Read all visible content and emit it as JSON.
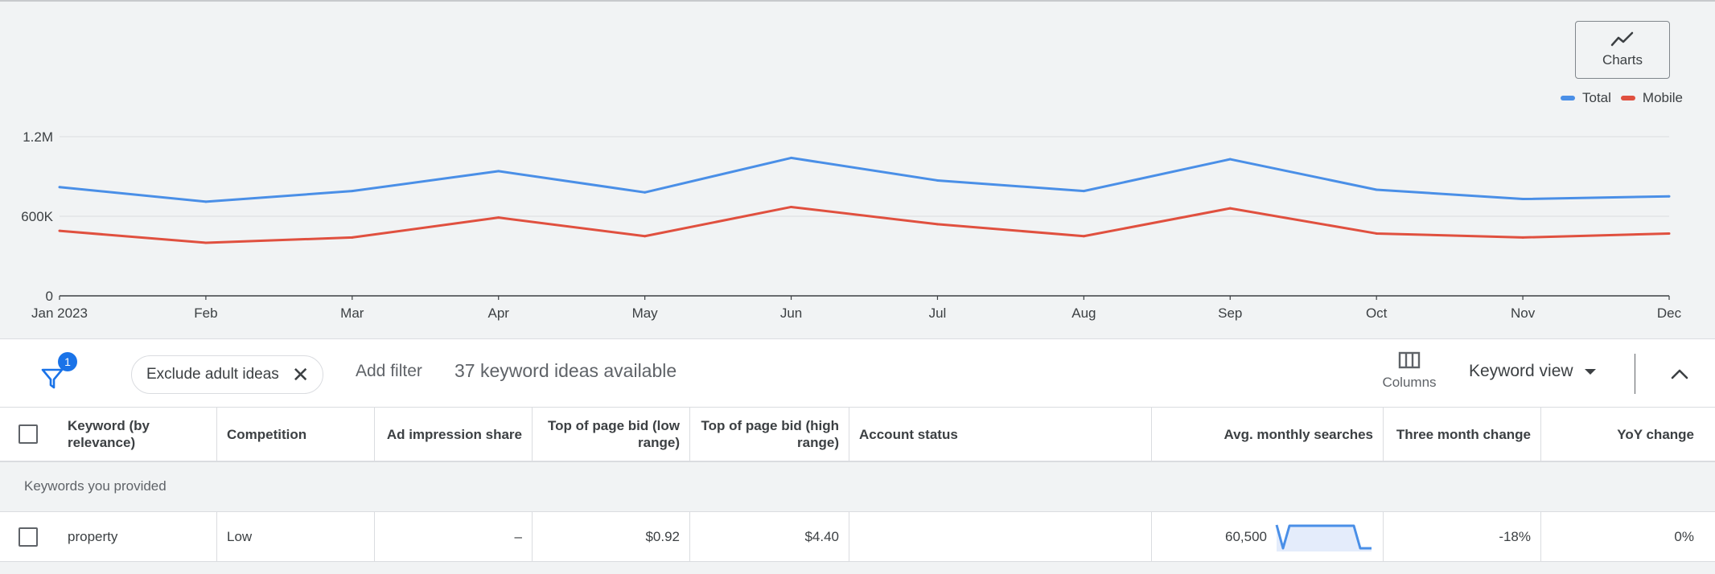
{
  "charts_button": {
    "label": "Charts",
    "icon": "trending-icon"
  },
  "legend": [
    {
      "name": "Total",
      "color": "#4a8fe7"
    },
    {
      "name": "Mobile",
      "color": "#e0503f"
    }
  ],
  "chart_data": {
    "type": "line",
    "categories": [
      "Jan 2023",
      "Feb",
      "Mar",
      "Apr",
      "May",
      "Jun",
      "Jul",
      "Aug",
      "Sep",
      "Oct",
      "Nov",
      "Dec"
    ],
    "series": [
      {
        "name": "Total",
        "color": "#4a8fe7",
        "values": [
          820000,
          710000,
          790000,
          940000,
          780000,
          1040000,
          870000,
          790000,
          1030000,
          800000,
          730000,
          750000
        ]
      },
      {
        "name": "Mobile",
        "color": "#e0503f",
        "values": [
          490000,
          400000,
          440000,
          590000,
          450000,
          670000,
          540000,
          450000,
          660000,
          470000,
          440000,
          470000
        ]
      }
    ],
    "ylim": [
      0,
      1200000
    ],
    "yticks": [
      {
        "value": 0,
        "label": "0"
      },
      {
        "value": 600000,
        "label": "600K"
      },
      {
        "value": 1200000,
        "label": "1.2M"
      }
    ],
    "grid": true,
    "legend_position": "top-right",
    "title": "",
    "xlabel": "",
    "ylabel": ""
  },
  "toolbar": {
    "filter_badge": "1",
    "chip_label": "Exclude adult ideas",
    "add_filter": "Add filter",
    "keyword_count": "37 keyword ideas available",
    "columns_label": "Columns",
    "keyword_view": "Keyword view"
  },
  "table": {
    "headers": {
      "keyword": "Keyword (by relevance)",
      "competition": "Competition",
      "ad_impression_share": "Ad impression share",
      "top_bid_low": "Top of page bid (low range)",
      "top_bid_high": "Top of page bid (high range)",
      "account_status": "Account status",
      "avg_monthly": "Avg. monthly searches",
      "three_month": "Three month change",
      "yoy": "YoY change"
    },
    "group_label": "Keywords you provided",
    "rows": [
      {
        "keyword": "property",
        "competition": "Low",
        "ad_impression_share": "–",
        "top_bid_low": "$0.92",
        "top_bid_high": "$4.40",
        "account_status": "",
        "avg_monthly": "60,500",
        "three_month": "-18%",
        "yoy": "0%"
      }
    ]
  }
}
